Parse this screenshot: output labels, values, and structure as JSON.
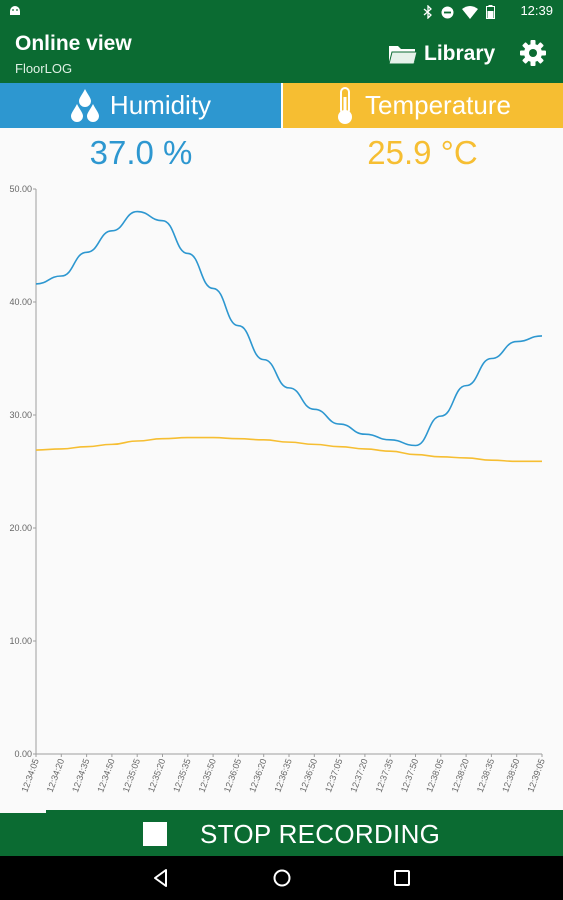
{
  "status_bar": {
    "time": "12:39",
    "icons": [
      "android-icon",
      "bluetooth-icon",
      "do-not-disturb-icon",
      "wifi-icon",
      "battery-icon"
    ]
  },
  "app_bar": {
    "title": "Online view",
    "subtitle": "FloorLOG",
    "library_label": "Library",
    "icons": [
      "folder-icon",
      "gear-icon"
    ]
  },
  "tabs": [
    {
      "label": "Humidity",
      "icon": "water-drops-icon",
      "color": "#2d97d0"
    },
    {
      "label": "Temperature",
      "icon": "thermometer-icon",
      "color": "#f6be32"
    }
  ],
  "readings": {
    "humidity": "37.0 %",
    "temperature": "25.9 °C"
  },
  "chart_data": {
    "type": "line",
    "title": "",
    "xlabel": "",
    "ylabel": "",
    "ylim": [
      0,
      50
    ],
    "y_ticks": [
      "0.00",
      "10.00",
      "20.00",
      "30.00",
      "40.00",
      "50.00"
    ],
    "x": [
      "12:34:05",
      "12:34:20",
      "12:34:35",
      "12:34:50",
      "12:35:05",
      "12:35:20",
      "12:35:35",
      "12:35:50",
      "12:36:05",
      "12:36:20",
      "12:36:35",
      "12:36:50",
      "12:37:05",
      "12:37:20",
      "12:37:35",
      "12:37:50",
      "12:38:05",
      "12:38:20",
      "12:38:35",
      "12:38:50",
      "12:39:05"
    ],
    "x_tick_labels": [
      "12:34:05",
      "12:34:20",
      "12:34:35",
      "12:34:50",
      "12:35:05",
      "12:35:20",
      "12:35:35",
      "12:35:50",
      "12:36:05",
      "12:36:20",
      "12:36:35",
      "12:36:50",
      "12:37:05",
      "12:37:20",
      "12:37:35",
      "12:37:50",
      "12:38:05",
      "12:38:20",
      "12:38:35",
      "12:38:50",
      "12:39:05"
    ],
    "grid": false,
    "series": [
      {
        "color": "#2d97d0",
        "values": [
          41.6,
          42.3,
          44.4,
          46.3,
          48.0,
          47.2,
          44.3,
          41.2,
          37.9,
          34.9,
          32.4,
          30.5,
          29.2,
          28.3,
          27.8,
          27.3,
          29.9,
          32.6,
          35.0,
          36.5,
          37.0
        ]
      },
      {
        "color": "#f6be32",
        "values": [
          26.9,
          27.0,
          27.2,
          27.4,
          27.7,
          27.9,
          28.0,
          28.0,
          27.9,
          27.8,
          27.6,
          27.4,
          27.2,
          27.0,
          26.8,
          26.5,
          26.3,
          26.2,
          26.0,
          25.9,
          25.9
        ]
      }
    ]
  },
  "record_bar": {
    "label": "STOP RECORDING",
    "icon": "stop-icon"
  },
  "nav_bar": {
    "icons": [
      "back-icon",
      "home-icon",
      "recents-icon"
    ]
  }
}
